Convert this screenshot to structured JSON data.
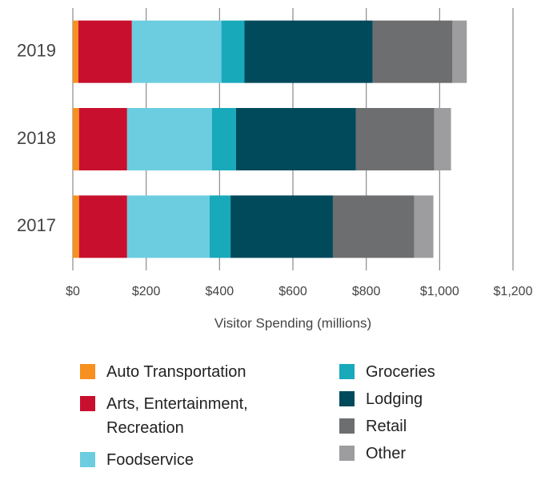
{
  "chart_data": {
    "type": "stacked-bar-horizontal",
    "x_label": "Visitor Spending (millions)",
    "categories": [
      "2019",
      "2018",
      "2017"
    ],
    "series": [
      {
        "name": "Auto Transportation",
        "color": "#f7901e",
        "values": [
          15,
          17,
          17
        ]
      },
      {
        "name": "Arts, Entertainment, Recreation",
        "color": "#c8102e",
        "values": [
          146,
          131,
          131
        ]
      },
      {
        "name": "Foodservice",
        "color": "#6ccde0",
        "values": [
          244,
          231,
          225
        ]
      },
      {
        "name": "Groceries",
        "color": "#18a9bb",
        "values": [
          63,
          66,
          57
        ]
      },
      {
        "name": "Lodging",
        "color": "#004a5c",
        "values": [
          349,
          327,
          279
        ]
      },
      {
        "name": "Retail",
        "color": "#6d6e70",
        "values": [
          218,
          213,
          222
        ]
      },
      {
        "name": "Other",
        "color": "#9d9d9f",
        "values": [
          39,
          46,
          52
        ]
      }
    ],
    "xlim": [
      0,
      1200
    ],
    "xticks": [
      {
        "value": 0,
        "label": "$0"
      },
      {
        "value": 200,
        "label": "$200"
      },
      {
        "value": 400,
        "label": "$400"
      },
      {
        "value": 600,
        "label": "$600"
      },
      {
        "value": 800,
        "label": "$800"
      },
      {
        "value": 1000,
        "label": "$1,000"
      },
      {
        "value": 1200,
        "label": "$1,200"
      }
    ],
    "grid": true
  }
}
